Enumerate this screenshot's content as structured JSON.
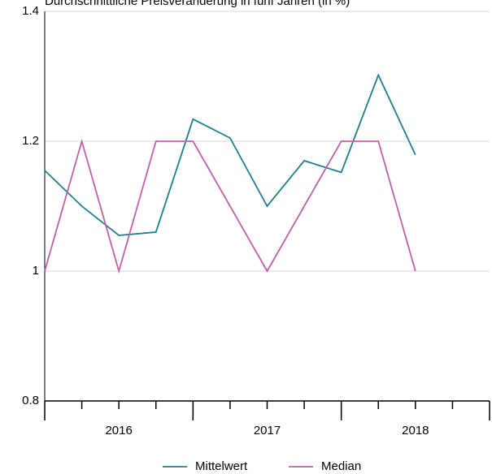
{
  "chart_data": {
    "type": "line",
    "title": "Durchschnittliche Preisveränderung in fünf Jahren (in %)",
    "x": [
      2016,
      2016.25,
      2016.5,
      2016.75,
      2017,
      2017.25,
      2017.5,
      2017.75,
      2018,
      2018.25,
      2018.5
    ],
    "xlim": [
      2016,
      2019
    ],
    "xticks": [
      {
        "value": 2016.5,
        "label": "2016"
      },
      {
        "value": 2017.5,
        "label": "2017"
      },
      {
        "value": 2018.5,
        "label": "2018"
      }
    ],
    "ylim": [
      0.8,
      1.4
    ],
    "yticks": [
      0.8,
      1,
      1.2,
      1.4
    ],
    "grid": true,
    "legend": "bottom",
    "series": [
      {
        "name": "Mittelwert",
        "color": "#1a7f8a",
        "values": [
          1.155,
          1.1,
          1.055,
          1.06,
          1.234,
          1.205,
          1.1,
          1.17,
          1.152,
          1.302,
          1.179
        ]
      },
      {
        "name": "Median",
        "color": "#c060a8",
        "values": [
          1.0,
          1.2,
          1.0,
          1.2,
          1.2,
          1.1,
          1.0,
          1.1,
          1.2,
          1.2,
          1.0
        ]
      }
    ]
  }
}
